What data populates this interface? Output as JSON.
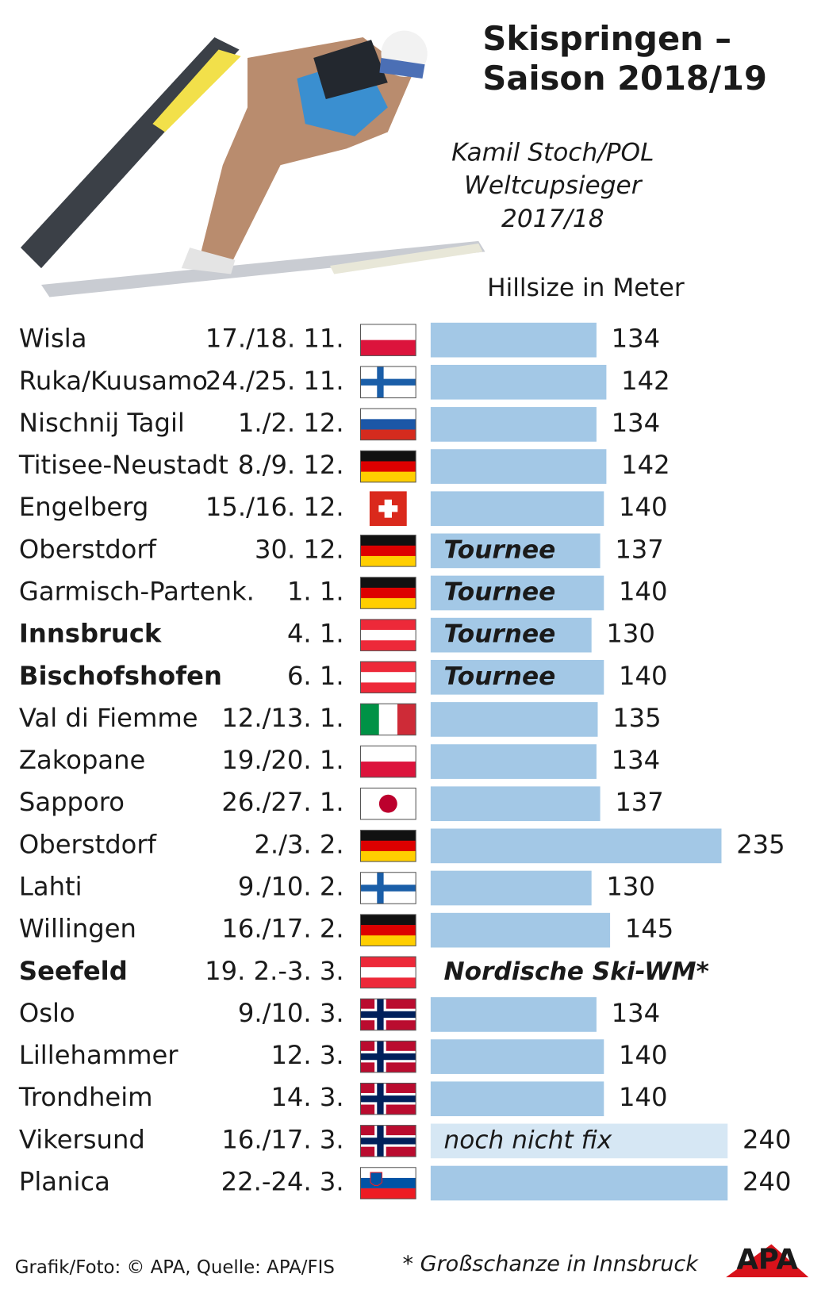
{
  "chart_data": {
    "type": "bar",
    "title_lines": [
      "Skispringen –",
      "Saison 2018/19"
    ],
    "subtitle_lines": [
      "Kamil Stoch/POL",
      "Weltcupsieger",
      "2017/18"
    ],
    "value_axis_label": "Hillsize in Meter",
    "categories": [
      "Wisla",
      "Ruka/Kuusamo",
      "Nischnij Tagil",
      "Titisee-Neustadt",
      "Engelberg",
      "Oberstdorf",
      "Garmisch-Partenk.",
      "Innsbruck",
      "Bischofshofen",
      "Val di Fiemme",
      "Zakopane",
      "Sapporo",
      "Oberstdorf",
      "Lahti",
      "Willingen",
      "Seefeld",
      "Oslo",
      "Lillehammer",
      "Trondheim",
      "Vikersund",
      "Planica"
    ],
    "dates": [
      "17./18. 11.",
      "24./25. 11.",
      "1./2. 12.",
      "8./9. 12.",
      "15./16. 12.",
      "30. 12.",
      "1. 1.",
      "4. 1.",
      "6. 1.",
      "12./13. 1.",
      "19./20. 1.",
      "26./27. 1.",
      "2./3. 2.",
      "9./10. 2.",
      "16./17. 2.",
      "19. 2.-3. 3.",
      "9./10. 3.",
      "12. 3.",
      "14. 3.",
      "16./17. 3.",
      "22.-24. 3."
    ],
    "values": [
      134,
      142,
      134,
      142,
      140,
      137,
      140,
      130,
      140,
      135,
      134,
      137,
      235,
      130,
      145,
      null,
      134,
      140,
      140,
      240,
      240
    ],
    "bar_labels": [
      null,
      null,
      null,
      null,
      null,
      "Tournee",
      "Tournee",
      "Tournee",
      "Tournee",
      null,
      null,
      null,
      null,
      null,
      null,
      "Nordische Ski-WM*",
      null,
      null,
      null,
      "noch nicht fix",
      null
    ],
    "bold": [
      7,
      8,
      15
    ],
    "color": "#a3c8e6",
    "pending_color": "#d6e7f4",
    "pending": [
      19
    ],
    "footer_source": "Grafik/Foto: © APA, Quelle: APA/FIS",
    "footnote": "* Großschanze in Innsbruck",
    "logo": "APA"
  }
}
